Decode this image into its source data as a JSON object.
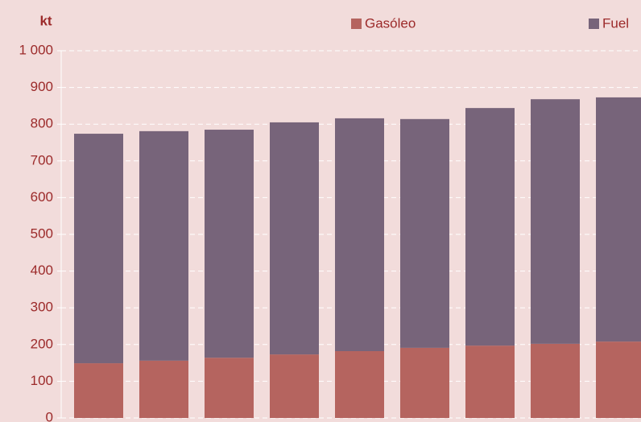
{
  "chart_data": {
    "type": "stacked_bar",
    "y_axis_label": "kt",
    "categories": [
      null,
      null,
      null,
      null,
      null,
      null,
      null,
      null,
      null
    ],
    "series": [
      {
        "name": "Gasóleo",
        "color": "#b5645f",
        "values": [
          149,
          156,
          164,
          173,
          182,
          191,
          197,
          202,
          208
        ]
      },
      {
        "name": "Fuel",
        "color": "#77647a",
        "values": [
          625,
          625,
          621,
          632,
          634,
          623,
          647,
          666,
          665
        ]
      }
    ],
    "ylim": [
      0,
      1000
    ],
    "yticks": [
      0,
      100,
      200,
      300,
      400,
      500,
      600,
      700,
      800,
      900,
      {
        "value": 1000,
        "label": "1 000"
      }
    ],
    "grid": true,
    "legend": "top"
  }
}
